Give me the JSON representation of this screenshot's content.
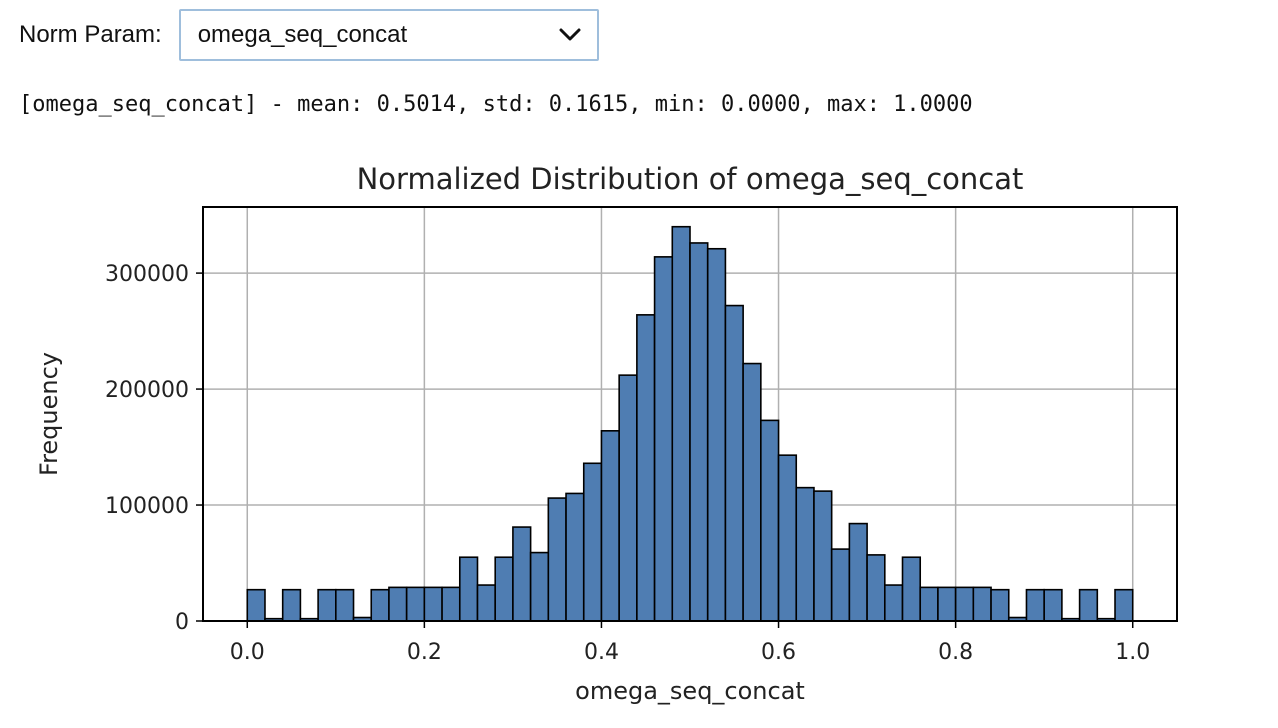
{
  "control": {
    "label": "Norm Param:",
    "selected": "omega_seq_concat",
    "chevron_icon": "chevron-down-icon"
  },
  "stats_text": "[omega_seq_concat] - mean: 0.5014, std: 0.1615, min: 0.0000, max: 1.0000",
  "chart_data": {
    "type": "bar",
    "title": "Normalized Distribution of omega_seq_concat",
    "xlabel": "omega_seq_concat",
    "ylabel": "Frequency",
    "xlim": [
      -0.05,
      1.05
    ],
    "ylim": [
      0,
      357000
    ],
    "x_ticks": [
      0.0,
      0.2,
      0.4,
      0.6,
      0.8,
      1.0
    ],
    "x_tick_labels": [
      "0.0",
      "0.2",
      "0.4",
      "0.6",
      "0.8",
      "1.0"
    ],
    "y_ticks": [
      0,
      100000,
      200000,
      300000
    ],
    "y_tick_labels": [
      "0",
      "100000",
      "200000",
      "300000"
    ],
    "grid": true,
    "bar_color": "#4f7db2",
    "edge_color": "#000000",
    "bins": 50,
    "bin_start": 0.0,
    "bin_width": 0.02,
    "values": [
      27000,
      2000,
      27000,
      2000,
      27000,
      27000,
      3000,
      27000,
      29000,
      29000,
      29000,
      29000,
      55000,
      31000,
      55000,
      81000,
      59000,
      106000,
      110000,
      136000,
      164000,
      212000,
      264000,
      314000,
      340000,
      326000,
      321000,
      272000,
      222000,
      173000,
      143000,
      115000,
      112000,
      62000,
      84000,
      57000,
      31000,
      55000,
      29000,
      29000,
      29000,
      29000,
      27000,
      3000,
      27000,
      27000,
      2000,
      27000,
      2000,
      27000
    ]
  }
}
